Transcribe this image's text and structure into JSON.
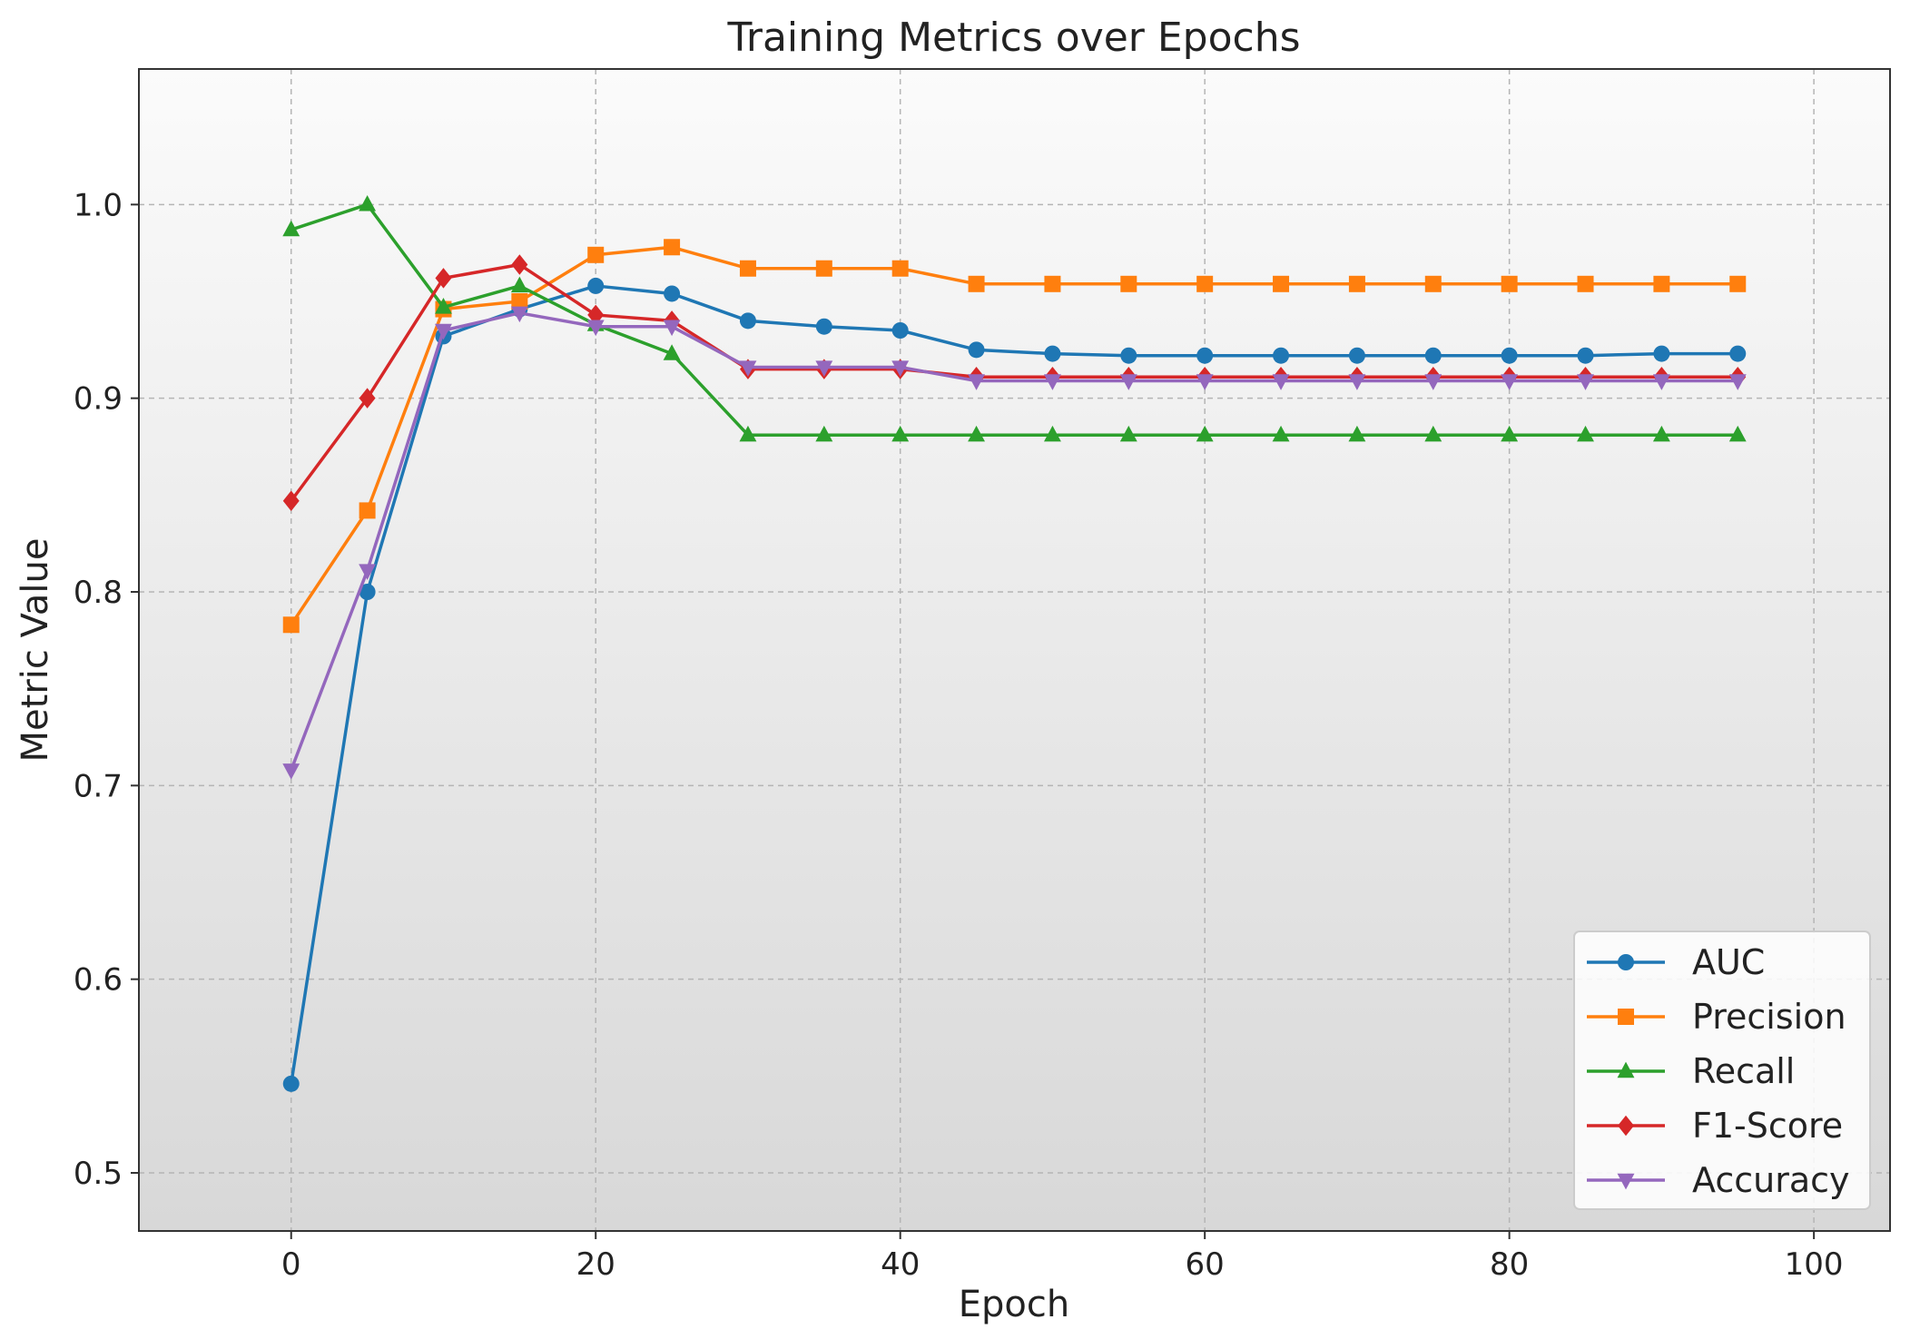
{
  "chart_data": {
    "type": "line",
    "title": "Training Metrics over Epochs",
    "xlabel": "Epoch",
    "ylabel": "Metric Value",
    "xlim": [
      -10,
      105
    ],
    "ylim": [
      0.47,
      1.07
    ],
    "xticks": [
      0,
      20,
      40,
      60,
      80,
      100
    ],
    "xtick_labels": [
      "0",
      "20",
      "40",
      "60",
      "80",
      "100"
    ],
    "yticks": [
      0.5,
      0.6,
      0.7,
      0.8,
      0.9,
      1.0
    ],
    "ytick_labels": [
      "0.5",
      "0.6",
      "0.7",
      "0.8",
      "0.9",
      "1.0"
    ],
    "grid": true,
    "legend_position": "bottom-right",
    "x": [
      0,
      5,
      10,
      15,
      20,
      25,
      30,
      35,
      40,
      45,
      50,
      55,
      60,
      65,
      70,
      75,
      80,
      85,
      90,
      95
    ],
    "series": [
      {
        "name": "AUC",
        "color": "#1f77b4",
        "marker": "circle",
        "values": [
          0.546,
          0.8,
          0.932,
          0.946,
          0.958,
          0.954,
          0.94,
          0.937,
          0.935,
          0.925,
          0.923,
          0.922,
          0.922,
          0.922,
          0.922,
          0.922,
          0.922,
          0.922,
          0.923,
          0.923
        ]
      },
      {
        "name": "Precision",
        "color": "#ff7f0e",
        "marker": "square",
        "values": [
          0.783,
          0.842,
          0.946,
          0.95,
          0.974,
          0.978,
          0.967,
          0.967,
          0.967,
          0.959,
          0.959,
          0.959,
          0.959,
          0.959,
          0.959,
          0.959,
          0.959,
          0.959,
          0.959,
          0.959
        ]
      },
      {
        "name": "Recall",
        "color": "#2ca02c",
        "marker": "triangle-up",
        "values": [
          0.987,
          1.0,
          0.947,
          0.958,
          0.938,
          0.923,
          0.881,
          0.881,
          0.881,
          0.881,
          0.881,
          0.881,
          0.881,
          0.881,
          0.881,
          0.881,
          0.881,
          0.881,
          0.881,
          0.881
        ]
      },
      {
        "name": "F1-Score",
        "color": "#d62728",
        "marker": "diamond",
        "values": [
          0.847,
          0.9,
          0.962,
          0.969,
          0.943,
          0.94,
          0.915,
          0.915,
          0.915,
          0.911,
          0.911,
          0.911,
          0.911,
          0.911,
          0.911,
          0.911,
          0.911,
          0.911,
          0.911,
          0.911
        ]
      },
      {
        "name": "Accuracy",
        "color": "#9467bd",
        "marker": "triangle-down",
        "values": [
          0.708,
          0.811,
          0.935,
          0.944,
          0.937,
          0.937,
          0.916,
          0.916,
          0.916,
          0.909,
          0.909,
          0.909,
          0.909,
          0.909,
          0.909,
          0.909,
          0.909,
          0.909,
          0.909,
          0.909
        ]
      }
    ]
  }
}
